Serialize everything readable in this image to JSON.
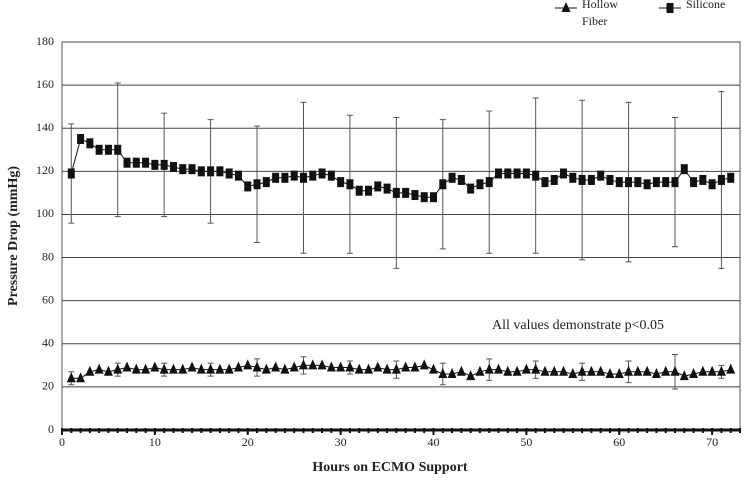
{
  "chart_data": {
    "type": "line",
    "xlabel": "Hours on ECMO Support",
    "ylabel": "Pressure Drop (mmHg)",
    "annotation": "All values demonstrate p<0.05",
    "xlim": [
      0,
      73
    ],
    "xticks": [
      0,
      10,
      20,
      30,
      40,
      50,
      60,
      70
    ],
    "ylim": [
      0,
      180
    ],
    "yticks": [
      0,
      20,
      40,
      60,
      80,
      100,
      120,
      140,
      160,
      180
    ],
    "grid": true,
    "x": [
      1,
      2,
      3,
      4,
      5,
      6,
      7,
      8,
      9,
      10,
      11,
      12,
      13,
      14,
      15,
      16,
      17,
      18,
      19,
      20,
      21,
      22,
      23,
      24,
      25,
      26,
      27,
      28,
      29,
      30,
      31,
      32,
      33,
      34,
      35,
      36,
      37,
      38,
      39,
      40,
      41,
      42,
      43,
      44,
      45,
      46,
      47,
      48,
      49,
      50,
      51,
      52,
      53,
      54,
      55,
      56,
      57,
      58,
      59,
      60,
      61,
      62,
      63,
      64,
      65,
      66,
      67,
      68,
      69,
      70,
      71,
      72
    ],
    "series": [
      {
        "name": "Hollow Fiber",
        "color": "#111111",
        "marker": "triangle",
        "values": [
          24,
          24,
          27,
          28,
          27,
          28,
          29,
          28,
          28,
          29,
          28,
          28,
          28,
          29,
          28,
          28,
          28,
          28,
          29,
          30,
          29,
          28,
          29,
          28,
          29,
          30,
          30,
          30,
          29,
          29,
          29,
          28,
          28,
          29,
          28,
          28,
          29,
          29,
          30,
          28,
          26,
          26,
          27,
          25,
          27,
          28,
          28,
          27,
          27,
          28,
          28,
          27,
          27,
          27,
          26,
          27,
          27,
          27,
          26,
          26,
          27,
          27,
          27,
          26,
          27,
          27,
          25,
          26,
          27,
          27,
          27,
          28
        ],
        "errors": [
          3,
          null,
          null,
          null,
          null,
          3,
          null,
          null,
          null,
          null,
          3,
          null,
          null,
          null,
          null,
          3,
          null,
          null,
          null,
          null,
          4,
          null,
          null,
          null,
          null,
          4,
          null,
          null,
          null,
          null,
          3,
          null,
          null,
          null,
          null,
          4,
          null,
          null,
          null,
          null,
          5,
          null,
          null,
          null,
          null,
          5,
          null,
          null,
          null,
          null,
          4,
          null,
          null,
          null,
          null,
          4,
          null,
          null,
          null,
          null,
          5,
          null,
          null,
          null,
          null,
          8,
          null,
          null,
          null,
          null,
          3,
          null
        ]
      },
      {
        "name": "Silicone",
        "color": "#111111",
        "marker": "square",
        "values": [
          119,
          135,
          133,
          130,
          130,
          130,
          124,
          124,
          124,
          123,
          123,
          122,
          121,
          121,
          120,
          120,
          120,
          119,
          118,
          113,
          114,
          115,
          117,
          117,
          118,
          117,
          118,
          119,
          118,
          115,
          114,
          111,
          111,
          113,
          112,
          110,
          110,
          109,
          108,
          108,
          114,
          117,
          116,
          112,
          114,
          115,
          119,
          119,
          119,
          119,
          118,
          115,
          116,
          119,
          117,
          116,
          116,
          118,
          116,
          115,
          115,
          115,
          114,
          115,
          115,
          115,
          121,
          115,
          116,
          114,
          116,
          117
        ],
        "errors": [
          23,
          null,
          null,
          null,
          null,
          31,
          null,
          null,
          null,
          null,
          24,
          null,
          null,
          null,
          null,
          24,
          null,
          null,
          null,
          null,
          27,
          null,
          null,
          null,
          null,
          35,
          null,
          null,
          null,
          null,
          32,
          null,
          null,
          null,
          null,
          35,
          null,
          null,
          null,
          null,
          30,
          null,
          null,
          null,
          null,
          33,
          null,
          null,
          null,
          null,
          36,
          null,
          null,
          null,
          null,
          37,
          null,
          null,
          null,
          null,
          37,
          null,
          null,
          null,
          null,
          30,
          null,
          null,
          null,
          null,
          41,
          null
        ]
      }
    ]
  }
}
